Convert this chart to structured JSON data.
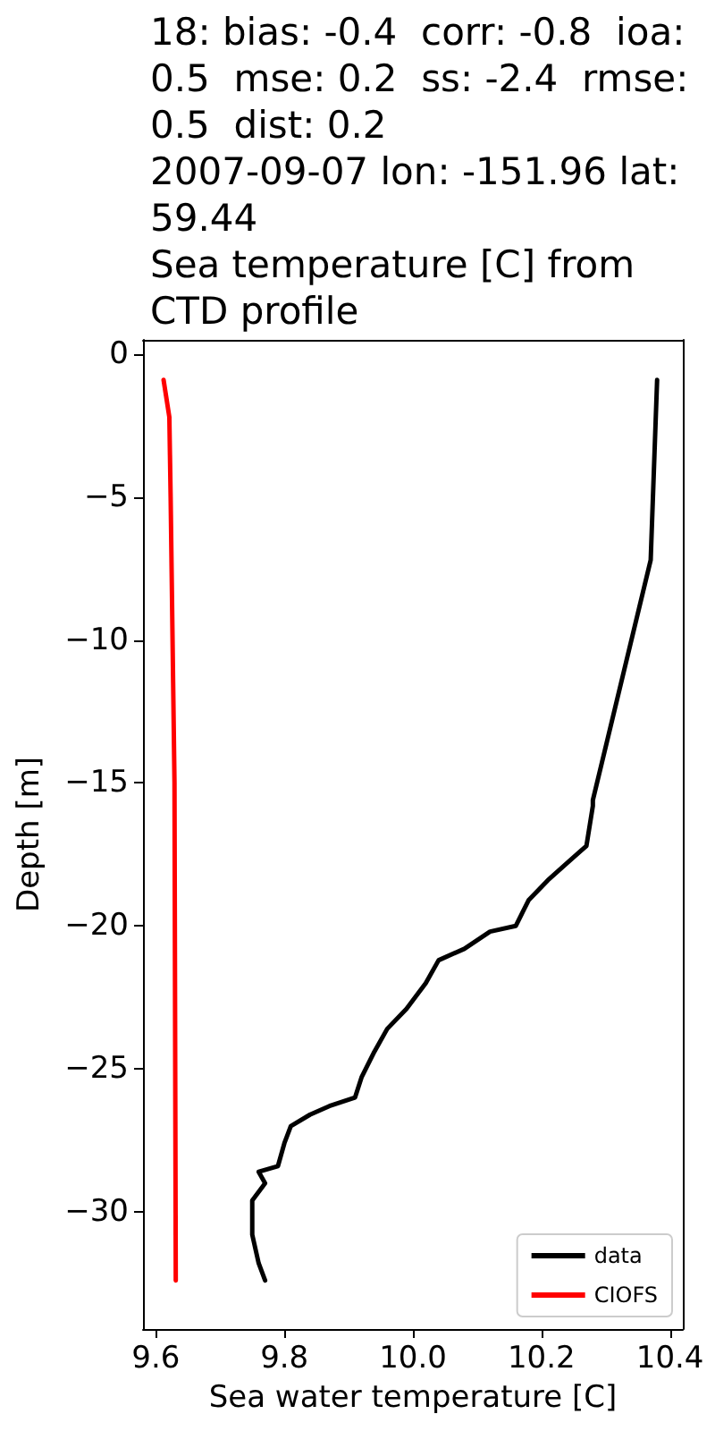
{
  "chart_data": {
    "type": "line",
    "title": "18: bias: -0.4  corr: -0.8  ioa: 0.5  mse: 0.2  ss: -2.4  rmse: 0.5  dist: 0.2\n2007-09-07 lon: -151.96 lat: 59.44\nSea temperature [C] from CTD profile",
    "xlabel": "Sea water temperature [C]",
    "ylabel": "Depth [m]",
    "series": [
      {
        "name": "data",
        "color": "#000000",
        "x": [
          10.38,
          10.37,
          10.28,
          10.28,
          10.27,
          10.26,
          10.24,
          10.21,
          10.18,
          10.16,
          10.12,
          10.08,
          10.04,
          10.02,
          9.99,
          9.96,
          9.94,
          9.92,
          9.91,
          9.87,
          9.84,
          9.81,
          9.8,
          9.79,
          9.76,
          9.77,
          9.75,
          9.75,
          9.76,
          9.77
        ],
        "values": [
          -0.9,
          -7.2,
          -15.6,
          -15.8,
          -17.2,
          -17.4,
          -17.8,
          -18.4,
          -19.1,
          -20.0,
          -20.2,
          -20.8,
          -21.2,
          -22.0,
          -22.9,
          -23.6,
          -24.4,
          -25.3,
          -26.0,
          -26.3,
          -26.6,
          -27.0,
          -27.6,
          -28.4,
          -28.6,
          -29.0,
          -29.6,
          -30.8,
          -31.8,
          -32.4
        ]
      },
      {
        "name": "CIOFS",
        "color": "#ff0000",
        "x": [
          9.612,
          9.621,
          9.623,
          9.626,
          9.629,
          9.631
        ],
        "values": [
          -0.9,
          -2.2,
          -5.0,
          -10.0,
          -15.0,
          -32.4
        ]
      }
    ],
    "xlim": [
      9.58,
      10.42
    ],
    "xticks": [
      9.6,
      9.8,
      {
        "value": 10,
        "label": "10.0"
      },
      10.2,
      10.4
    ],
    "ylim": [
      -34.1,
      0.5
    ],
    "yticks": [
      {
        "value": 0,
        "label": "0"
      },
      {
        "value": -5,
        "label": "−5"
      },
      {
        "value": -10,
        "label": "−10"
      },
      {
        "value": -15,
        "label": "−15"
      },
      {
        "value": -20,
        "label": "−20"
      },
      {
        "value": -25,
        "label": "−25"
      },
      {
        "value": -30,
        "label": "−30"
      }
    ],
    "grid": false,
    "legend": "bottom right",
    "line_style": "solid",
    "marker": "none"
  }
}
